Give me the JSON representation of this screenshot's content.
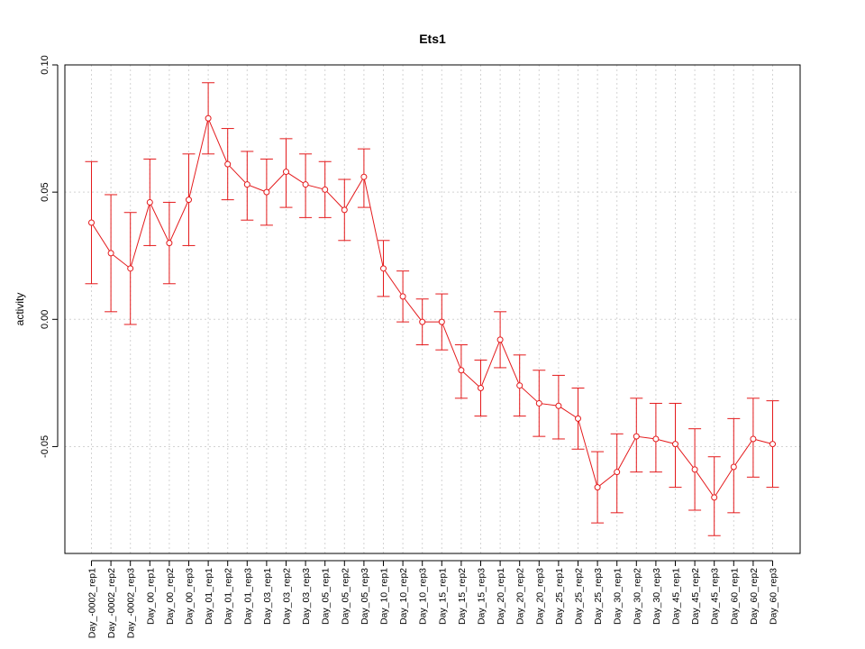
{
  "chart_data": {
    "type": "line",
    "title": "Ets1",
    "xlabel": "",
    "ylabel": "activity",
    "ylim": [
      -0.092,
      0.1
    ],
    "yticks": [
      -0.05,
      0.0,
      0.05,
      0.1
    ],
    "ytick_labels": [
      "-0.05",
      "0.00",
      "0.05",
      "0.10"
    ],
    "grid": true,
    "color": "#e41a1c",
    "categories": [
      "Day_-0002_rep1",
      "Day_-0002_rep2",
      "Day_-0002_rep3",
      "Day_00_rep1",
      "Day_00_rep2",
      "Day_00_rep3",
      "Day_01_rep1",
      "Day_01_rep2",
      "Day_01_rep3",
      "Day_03_rep1",
      "Day_03_rep2",
      "Day_03_rep3",
      "Day_05_rep1",
      "Day_05_rep2",
      "Day_05_rep3",
      "Day_10_rep1",
      "Day_10_rep2",
      "Day_10_rep3",
      "Day_15_rep1",
      "Day_15_rep2",
      "Day_15_rep3",
      "Day_20_rep1",
      "Day_20_rep2",
      "Day_20_rep3",
      "Day_25_rep1",
      "Day_25_rep2",
      "Day_25_rep3",
      "Day_30_rep1",
      "Day_30_rep2",
      "Day_30_rep3",
      "Day_45_rep1",
      "Day_45_rep2",
      "Day_45_rep3",
      "Day_60_rep1",
      "Day_60_rep2",
      "Day_60_rep3"
    ],
    "series": [
      {
        "values": [
          0.038,
          0.026,
          0.02,
          0.046,
          0.03,
          0.047,
          0.079,
          0.061,
          0.053,
          0.05,
          0.058,
          0.053,
          0.051,
          0.043,
          0.056,
          0.02,
          0.009,
          -0.001,
          -0.001,
          -0.02,
          -0.027,
          -0.008,
          -0.026,
          -0.033,
          -0.034,
          -0.039,
          -0.066,
          -0.06,
          -0.046,
          -0.047,
          -0.049,
          -0.059,
          -0.07,
          -0.058,
          -0.047,
          -0.049
        ],
        "upper": [
          0.062,
          0.049,
          0.042,
          0.063,
          0.046,
          0.065,
          0.093,
          0.075,
          0.066,
          0.063,
          0.071,
          0.065,
          0.062,
          0.055,
          0.067,
          0.031,
          0.019,
          0.008,
          0.01,
          -0.01,
          -0.016,
          0.003,
          -0.014,
          -0.02,
          -0.022,
          -0.027,
          -0.052,
          -0.045,
          -0.031,
          -0.033,
          -0.033,
          -0.043,
          -0.054,
          -0.039,
          -0.031,
          -0.032
        ],
        "lower": [
          0.014,
          0.003,
          -0.002,
          0.029,
          0.014,
          0.029,
          0.065,
          0.047,
          0.039,
          0.037,
          0.044,
          0.04,
          0.04,
          0.031,
          0.044,
          0.009,
          -0.001,
          -0.01,
          -0.012,
          -0.031,
          -0.038,
          -0.019,
          -0.038,
          -0.046,
          -0.047,
          -0.051,
          -0.08,
          -0.076,
          -0.06,
          -0.06,
          -0.066,
          -0.075,
          -0.085,
          -0.076,
          -0.062,
          -0.066
        ]
      }
    ]
  }
}
